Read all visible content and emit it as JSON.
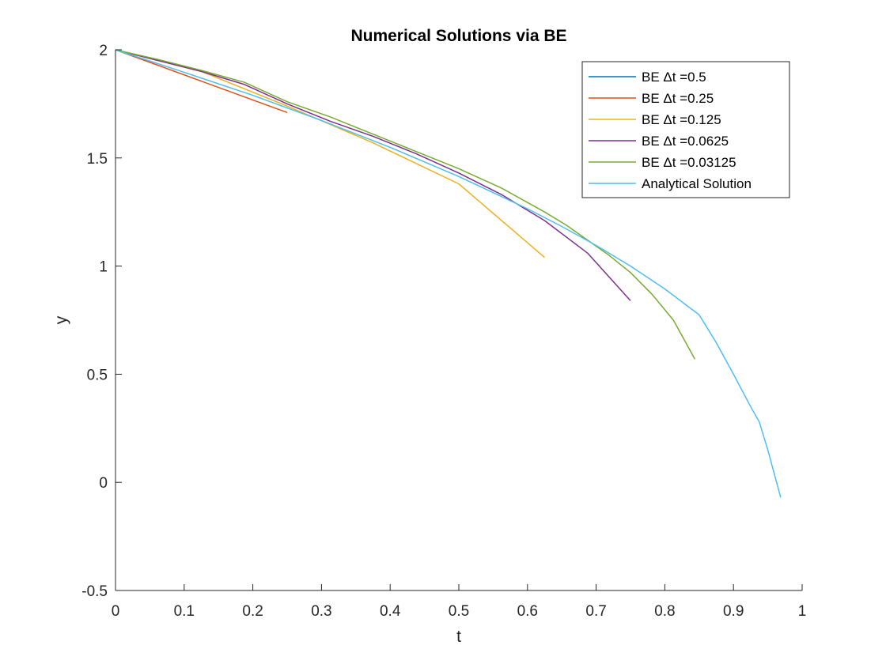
{
  "chart_data": {
    "type": "line",
    "title": "Numerical Solutions via BE",
    "xlabel": "t",
    "ylabel": "y",
    "xlim": [
      0,
      1
    ],
    "ylim": [
      -0.5,
      2
    ],
    "xticks": [
      0,
      0.1,
      0.2,
      0.3,
      0.4,
      0.5,
      0.6,
      0.7,
      0.8,
      0.9,
      1
    ],
    "xtick_labels": [
      "0",
      "0.1",
      "0.2",
      "0.3",
      "0.4",
      "0.5",
      "0.6",
      "0.7",
      "0.8",
      "0.9",
      "1"
    ],
    "yticks": [
      -0.5,
      0,
      0.5,
      1,
      1.5,
      2
    ],
    "ytick_labels": [
      "-0.5",
      "0",
      "0.5",
      "1",
      "1.5",
      "2"
    ],
    "grid": false,
    "legend_position": "top-right",
    "series": [
      {
        "name": "BE Δt =0.5",
        "color": "#0072BD",
        "x": [
          0
        ],
        "y": [
          2
        ]
      },
      {
        "name": "BE Δt =0.25",
        "color": "#D95319",
        "x": [
          0,
          0.25
        ],
        "y": [
          2,
          1.71
        ]
      },
      {
        "name": "BE Δt =0.125",
        "color": "#EDB120",
        "x": [
          0,
          0.125,
          0.25,
          0.375,
          0.5,
          0.625
        ],
        "y": [
          2,
          1.9,
          1.74,
          1.57,
          1.38,
          1.04
        ]
      },
      {
        "name": "BE Δt =0.0625",
        "color": "#7E2F8E",
        "x": [
          0,
          0.0625,
          0.125,
          0.1875,
          0.25,
          0.3125,
          0.375,
          0.4375,
          0.5,
          0.5625,
          0.625,
          0.6875,
          0.75
        ],
        "y": [
          2,
          1.95,
          1.9,
          1.84,
          1.75,
          1.67,
          1.6,
          1.52,
          1.43,
          1.33,
          1.21,
          1.06,
          0.84
        ]
      },
      {
        "name": "BE Δt =0.03125",
        "color": "#77AC30",
        "x": [
          0,
          0.0625,
          0.125,
          0.1875,
          0.25,
          0.3125,
          0.375,
          0.4375,
          0.5,
          0.5625,
          0.625,
          0.65625,
          0.6875,
          0.71875,
          0.75,
          0.78125,
          0.8125,
          0.84375
        ],
        "y": [
          2,
          1.955,
          1.905,
          1.85,
          1.76,
          1.69,
          1.61,
          1.53,
          1.45,
          1.36,
          1.25,
          1.19,
          1.12,
          1.05,
          0.97,
          0.87,
          0.75,
          0.57
        ]
      },
      {
        "name": "Analytical Solution",
        "color": "#4DBEEE",
        "x": [
          0,
          0.1,
          0.2,
          0.3,
          0.4,
          0.5,
          0.6,
          0.65,
          0.7,
          0.75,
          0.8,
          0.85,
          0.875,
          0.9,
          0.925,
          0.9375,
          0.95,
          0.96875
        ],
        "y": [
          2,
          1.896,
          1.7895,
          1.6733,
          1.549,
          1.4142,
          1.2649,
          1.1832,
          1.0954,
          1.0,
          0.8944,
          0.7746,
          0.6455,
          0.5,
          0.35,
          0.28,
          0.15,
          -0.07
        ]
      }
    ]
  }
}
